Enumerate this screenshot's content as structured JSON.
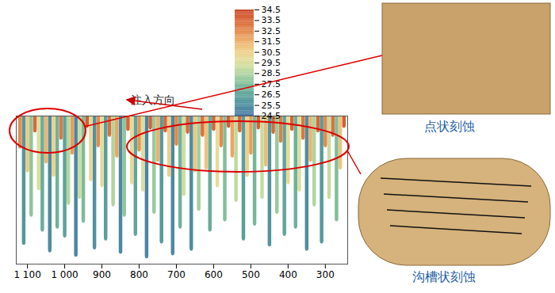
{
  "chart_data": {
    "type": "surface_profile",
    "annotations": [
      "注入方向",
      "点状刻蚀",
      "沟槽状刻蚀"
    ],
    "x": [
      250,
      260,
      270,
      280,
      290,
      300,
      310,
      320,
      330,
      340,
      350,
      360,
      370,
      380,
      390,
      400,
      410,
      420,
      430,
      440,
      450,
      460,
      470,
      480,
      490,
      500,
      510,
      520,
      530,
      540,
      550,
      560,
      570,
      580,
      590,
      600,
      610,
      620,
      630,
      640,
      650,
      660,
      670,
      680,
      690,
      700,
      710,
      720,
      730,
      740,
      750,
      760,
      770,
      780,
      790,
      800,
      810,
      820,
      830,
      840,
      850,
      860,
      870,
      880,
      890,
      900,
      910,
      920,
      930,
      940,
      950,
      960,
      970,
      980,
      990,
      1000,
      1010,
      1020,
      1030,
      1040,
      1050,
      1060,
      1070,
      1080,
      1090,
      1100,
      1110,
      1120
    ],
    "values": [
      33.8,
      31.0,
      27.5,
      33.2,
      29.0,
      32.5,
      26.0,
      33.5,
      28.5,
      31.5,
      25.5,
      33.0,
      29.5,
      27.0,
      33.6,
      30.0,
      26.5,
      32.8,
      28.0,
      33.4,
      25.8,
      31.2,
      29.0,
      33.7,
      27.2,
      32.0,
      30.5,
      26.2,
      33.5,
      28.8,
      31.8,
      33.8,
      27.5,
      32.5,
      29.8,
      33.6,
      26.8,
      31.0,
      33.2,
      28.2,
      30.8,
      25.5,
      33.4,
      29.2,
      27.0,
      32.6,
      25.2,
      30.5,
      33.5,
      26.0,
      31.5,
      28.0,
      33.7,
      25.0,
      29.5,
      32.2,
      26.5,
      30.0,
      33.6,
      27.8,
      25.3,
      31.8,
      28.5,
      33.2,
      26.2,
      29.8,
      32.5,
      25.6,
      30.2,
      33.8,
      27.4,
      29.0,
      25.1,
      32.0,
      28.6,
      26.4,
      33.0,
      27.0,
      30.5,
      25.4,
      31.4,
      26.8,
      29.6,
      33.5,
      27.8,
      30.8,
      25.9,
      32.4
    ],
    "xlim": [
      1130,
      240
    ],
    "xticks": [
      300,
      400,
      500,
      600,
      700,
      800,
      900,
      {
        "value": 1000,
        "label": "1 000"
      },
      {
        "value": 1100,
        "label": "1 100"
      }
    ],
    "ylim": [
      24.5,
      34.5
    ],
    "tick_labels": "x",
    "colorbar": {
      "range": [
        24.5,
        34.5
      ],
      "ticks": [
        24.5,
        25.5,
        26.5,
        27.5,
        28.5,
        29.5,
        30.5,
        31.5,
        32.5,
        33.5,
        34.5
      ]
    }
  }
}
